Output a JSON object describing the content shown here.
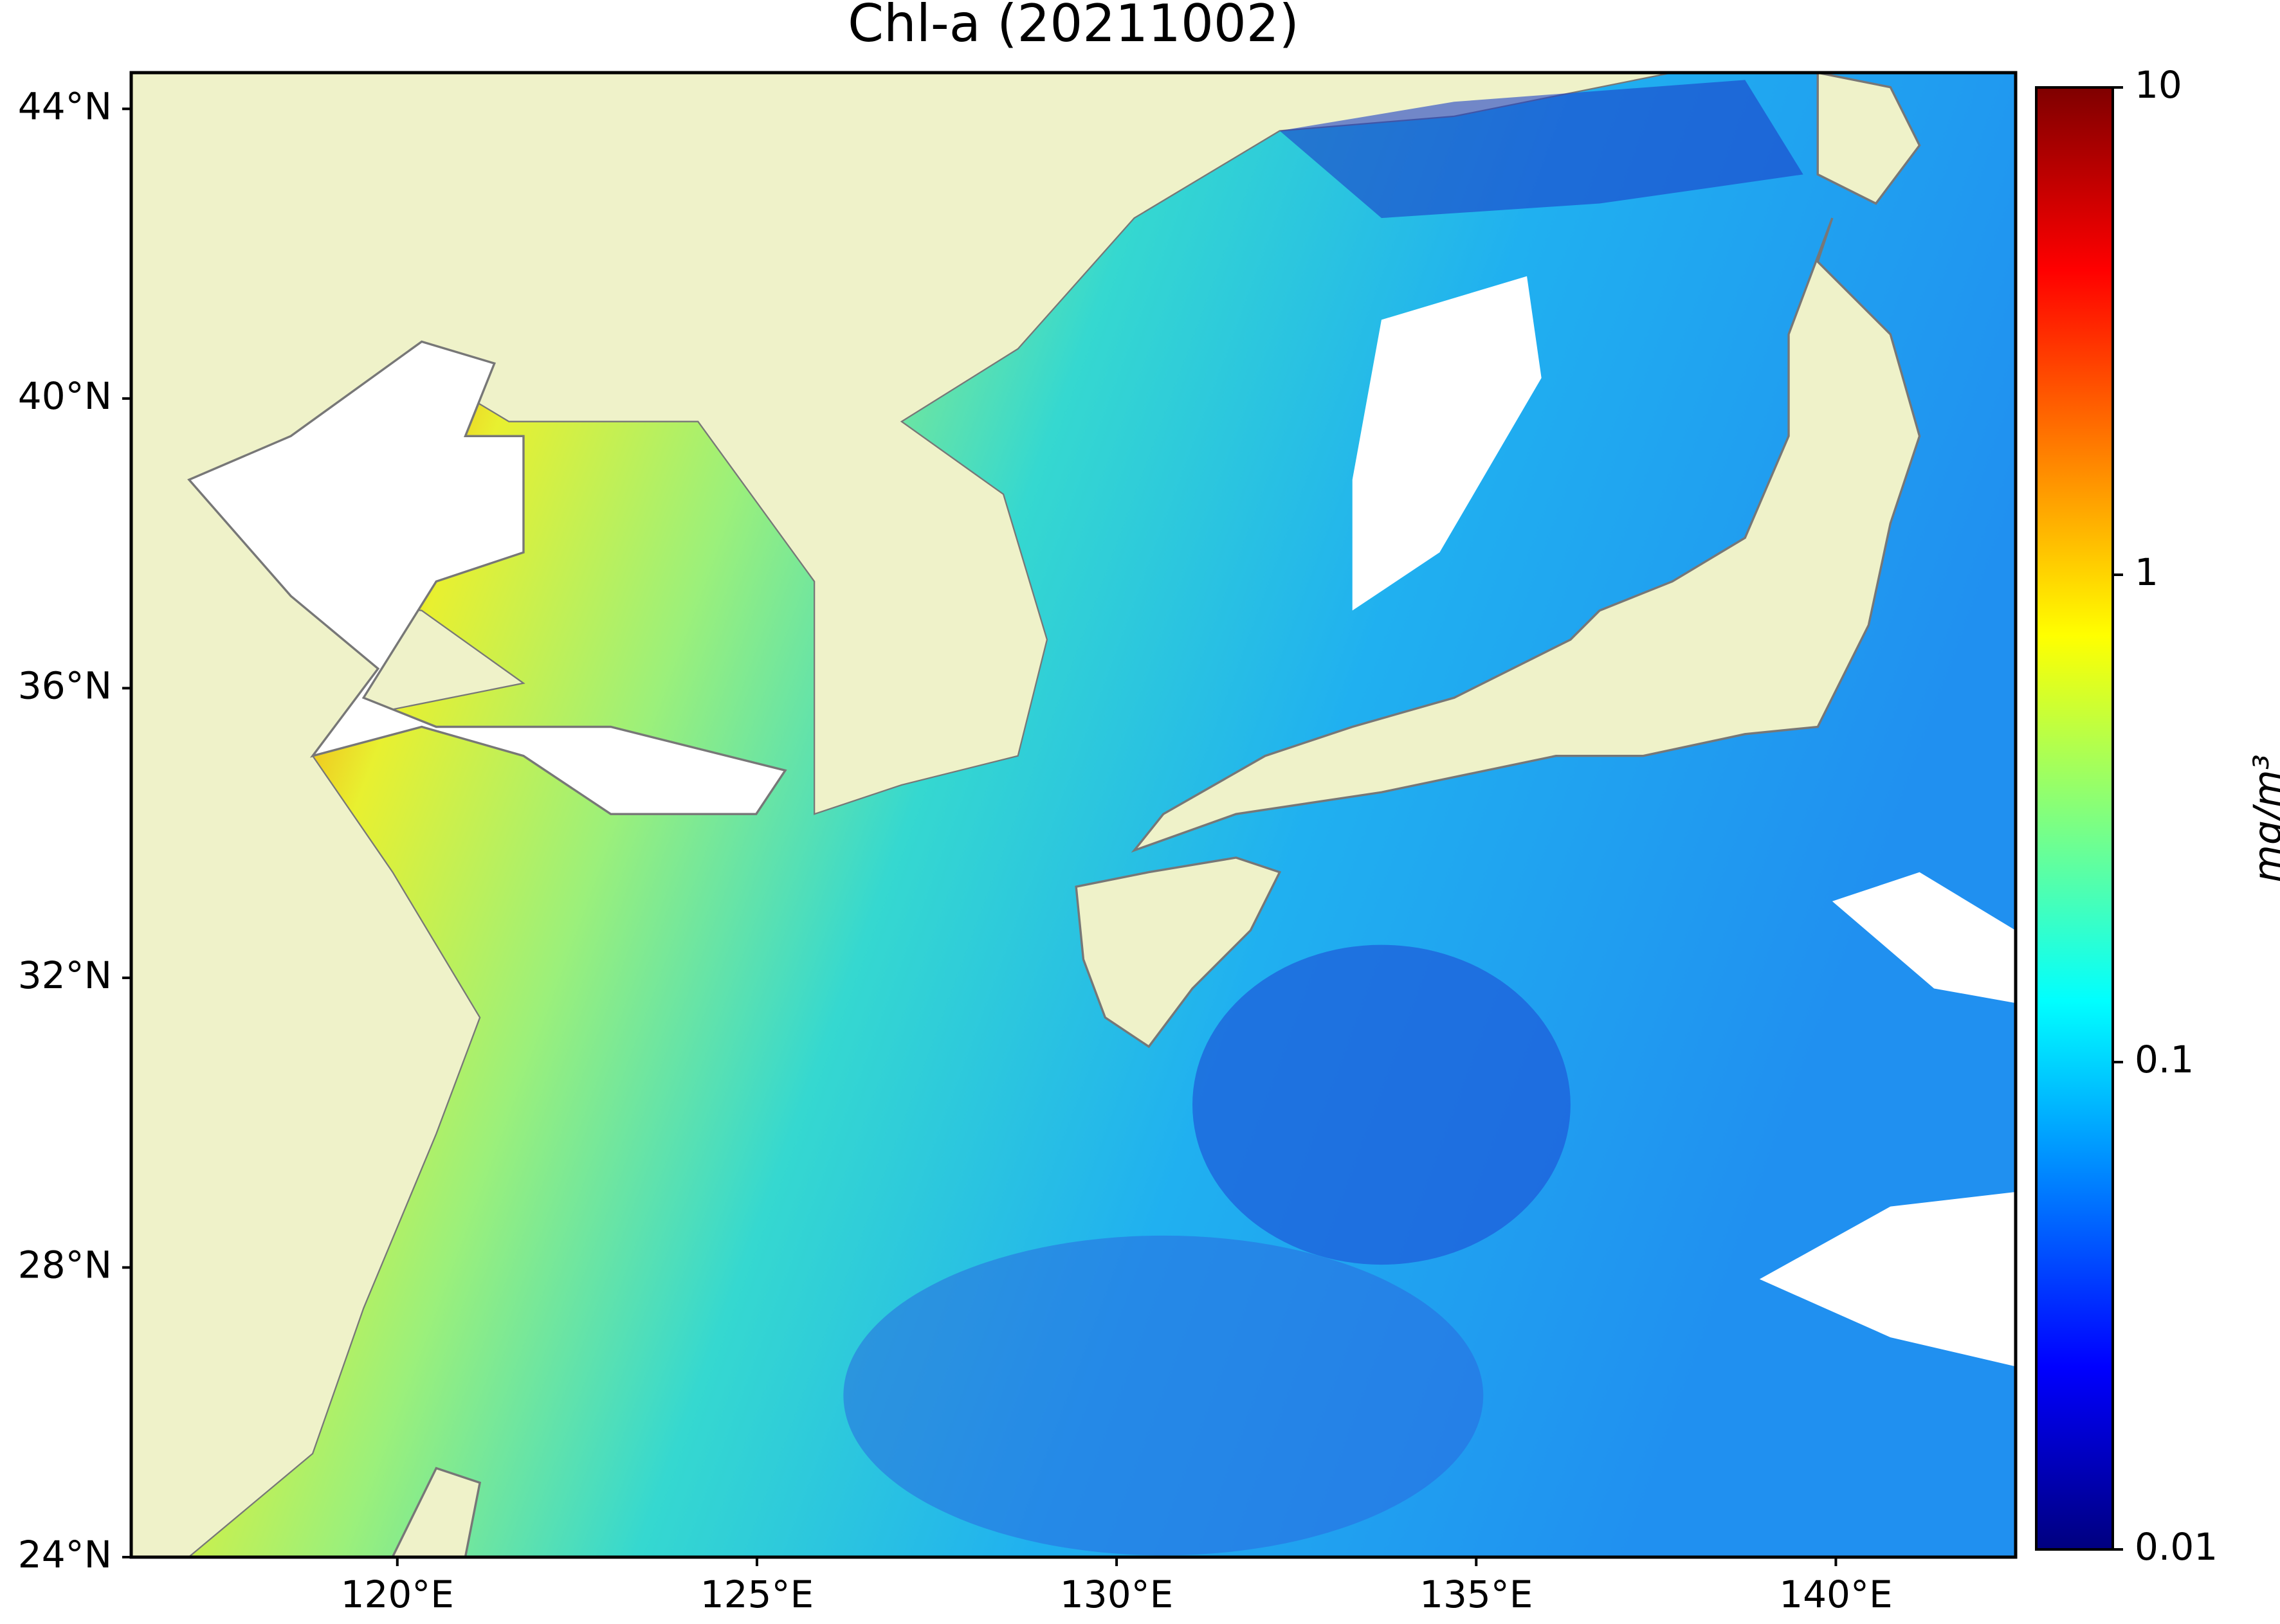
{
  "map": {
    "title": "Chl-a (20211002)",
    "xlim": [
      116.3,
      142.5
    ],
    "ylim": [
      24,
      44.5
    ],
    "xticks": [
      {
        "value": 120,
        "label": "120°E"
      },
      {
        "value": 125,
        "label": "125°E"
      },
      {
        "value": 130,
        "label": "130°E"
      },
      {
        "value": 135,
        "label": "135°E"
      },
      {
        "value": 140,
        "label": "140°E"
      }
    ],
    "yticks": [
      {
        "value": 24,
        "label": "24°N"
      },
      {
        "value": 28,
        "label": "28°N"
      },
      {
        "value": 32,
        "label": "32°N"
      },
      {
        "value": 36,
        "label": "36°N"
      },
      {
        "value": 40,
        "label": "40°N"
      },
      {
        "value": 44,
        "label": "44°N"
      }
    ],
    "colorbar": {
      "label": "mg/m³",
      "scale": "log",
      "colormap": "jet",
      "lim": [
        0.01,
        10
      ],
      "ticks": [
        0.01,
        0.1,
        1,
        10
      ]
    }
  }
}
